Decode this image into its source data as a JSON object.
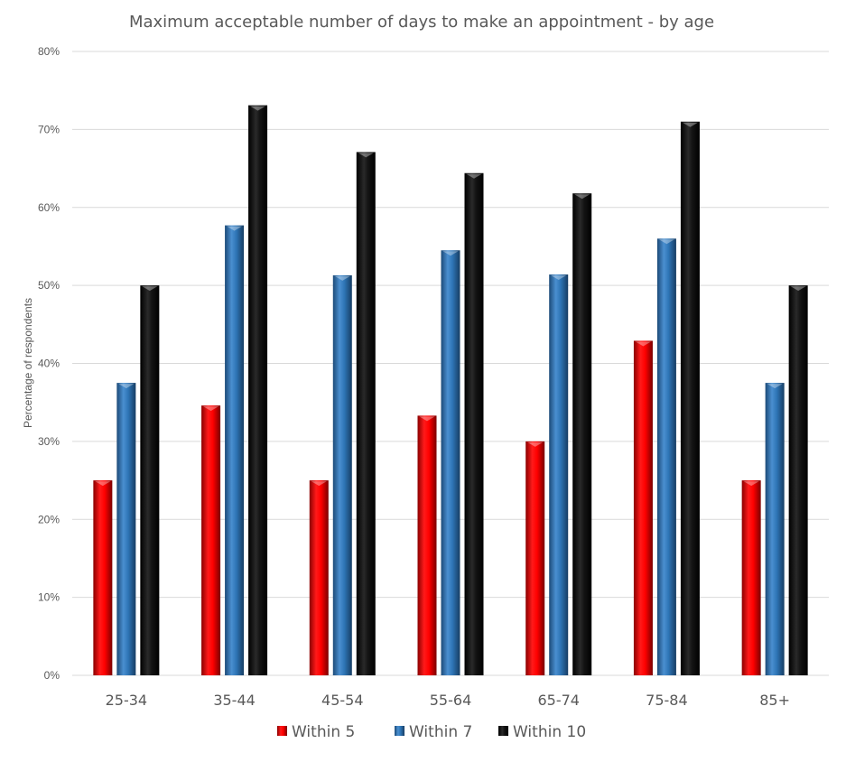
{
  "chart_data": {
    "type": "bar",
    "title": "Maximum acceptable number of days to make an appointment - by age",
    "ylabel": "Percentage of respondents",
    "xlabel": "",
    "categories": [
      "25-34",
      "35-44",
      "45-54",
      "55-64",
      "65-74",
      "75-84",
      "85+"
    ],
    "ylim": [
      0,
      80
    ],
    "yticks": [
      "0%",
      "10%",
      "20%",
      "30%",
      "40%",
      "50%",
      "60%",
      "70%",
      "80%"
    ],
    "grid": true,
    "legend_position": "bottom",
    "series": [
      {
        "name": "Within 5",
        "color": "#ff0000",
        "values": [
          25,
          34.6,
          25,
          33.3,
          30,
          42.9,
          25
        ]
      },
      {
        "name": "Within 7",
        "color": "#2e75b6",
        "values": [
          37.5,
          57.7,
          51.3,
          54.5,
          51.4,
          56,
          37.5
        ]
      },
      {
        "name": "Within 10",
        "color": "#111111",
        "values": [
          50,
          73.1,
          67.1,
          64.4,
          61.8,
          71,
          50
        ]
      }
    ]
  }
}
